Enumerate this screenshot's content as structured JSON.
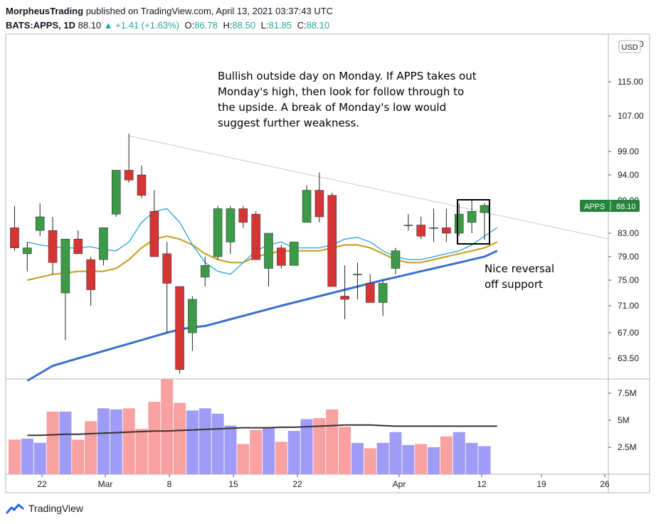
{
  "header": {
    "author": "MorpheusTrading",
    "published": "published on TradingView.com, April 13, 2021 03:37:43 UTC",
    "symbol": "BATS:APPS, 1D",
    "last": "88.10",
    "change_arrow": "▲",
    "change": "+1.41 (+1.63%)",
    "o_label": "O:",
    "o": "86.78",
    "h_label": "H:",
    "h": "88.50",
    "l_label": "L:",
    "l": "81.85",
    "c_label": "C:",
    "c": "88.10"
  },
  "footer": {
    "brand": "TradingView",
    "logo_icon": "tradingview-logo-icon"
  },
  "chart_data": {
    "type": "candlestick",
    "currency": "USD",
    "price_axis_ticks": [
      "115.00",
      "107.00",
      "99.00",
      "94.00",
      "89.00",
      "83.00",
      "79.00",
      "75.00",
      "71.00",
      "67.00",
      "63.50"
    ],
    "price_axis_top_label": "123.00",
    "volume_axis_ticks": [
      "7.5M",
      "5M",
      "2.5M"
    ],
    "x_ticks": [
      {
        "label": "22",
        "date": "2021-02-22"
      },
      {
        "label": "Mar",
        "date": "2021-03-01"
      },
      {
        "label": "8",
        "date": "2021-03-08"
      },
      {
        "label": "15",
        "date": "2021-03-15"
      },
      {
        "label": "22",
        "date": "2021-03-22"
      },
      {
        "label": "Apr",
        "date": "2021-04-01"
      },
      {
        "label": "12",
        "date": "2021-04-12"
      },
      {
        "label": "19",
        "date": "2021-04-19"
      },
      {
        "label": "26",
        "date": "2021-04-26"
      }
    ],
    "last_price_label": {
      "symbol": "APPS",
      "value": "88.10"
    },
    "candles": [
      {
        "date": "2021-02-16",
        "o": 84,
        "h": 88,
        "l": 80,
        "c": 80.5,
        "v": 3.2
      },
      {
        "date": "2021-02-17",
        "o": 79.5,
        "h": 81.5,
        "l": 76.5,
        "c": 80.5,
        "v": 3.3
      },
      {
        "date": "2021-02-18",
        "o": 83.5,
        "h": 88.5,
        "l": 82.5,
        "c": 86,
        "v": 2.9
      },
      {
        "date": "2021-02-19",
        "o": 83.5,
        "h": 86,
        "l": 76,
        "c": 78,
        "v": 5.8
      },
      {
        "date": "2021-02-22",
        "o": 73,
        "h": 82,
        "l": 66,
        "c": 82,
        "v": 5.8
      },
      {
        "date": "2021-02-23",
        "o": 82,
        "h": 83.5,
        "l": 79.5,
        "c": 79.5,
        "v": 3.2
      },
      {
        "date": "2021-02-24",
        "o": 78.5,
        "h": 79,
        "l": 71,
        "c": 73.5,
        "v": 4.9
      },
      {
        "date": "2021-02-25",
        "o": 78.5,
        "h": 84,
        "l": 77.5,
        "c": 84,
        "v": 6.1
      },
      {
        "date": "2021-02-26",
        "o": 86.5,
        "h": 95,
        "l": 86,
        "c": 95,
        "v": 6.0
      },
      {
        "date": "2021-03-01",
        "o": 95,
        "h": 103,
        "l": 92.5,
        "c": 93,
        "v": 6.1
      },
      {
        "date": "2021-03-02",
        "o": 94,
        "h": 96,
        "l": 89.5,
        "c": 90,
        "v": 4.2
      },
      {
        "date": "2021-03-03",
        "o": 87,
        "h": 91,
        "l": 79,
        "c": 79,
        "v": 6.7
      },
      {
        "date": "2021-03-04",
        "o": 79.5,
        "h": 81.5,
        "l": 67,
        "c": 74.5,
        "v": 8.8
      },
      {
        "date": "2021-03-05",
        "o": 74,
        "h": 74,
        "l": 61.5,
        "c": 62,
        "v": 6.6
      },
      {
        "date": "2021-03-08",
        "o": 67,
        "h": 72.5,
        "l": 64.5,
        "c": 72,
        "v": 5.9
      },
      {
        "date": "2021-03-09",
        "o": 75.5,
        "h": 79,
        "l": 74,
        "c": 77.5,
        "v": 6.1
      },
      {
        "date": "2021-03-10",
        "o": 79,
        "h": 88,
        "l": 78.5,
        "c": 87.5,
        "v": 5.6
      },
      {
        "date": "2021-03-11",
        "o": 81.5,
        "h": 88,
        "l": 79.5,
        "c": 87.5,
        "v": 4.5
      },
      {
        "date": "2021-03-12",
        "o": 87.5,
        "h": 88,
        "l": 84,
        "c": 85,
        "v": 2.8
      },
      {
        "date": "2021-03-15",
        "o": 86.5,
        "h": 87,
        "l": 78.5,
        "c": 78.5,
        "v": 4.1
      },
      {
        "date": "2021-03-16",
        "o": 77,
        "h": 83,
        "l": 74,
        "c": 83,
        "v": 4.3
      },
      {
        "date": "2021-03-17",
        "o": 80.5,
        "h": 81,
        "l": 77,
        "c": 77.5,
        "v": 3.0
      },
      {
        "date": "2021-03-18",
        "o": 77.5,
        "h": 81.5,
        "l": 77.5,
        "c": 81.5,
        "v": 4.0
      },
      {
        "date": "2021-03-19",
        "o": 85,
        "h": 92,
        "l": 85,
        "c": 91,
        "v": 5.1
      },
      {
        "date": "2021-03-22",
        "o": 91,
        "h": 94.5,
        "l": 85,
        "c": 86,
        "v": 5.2
      },
      {
        "date": "2021-03-23",
        "o": 90,
        "h": 90.5,
        "l": 74,
        "c": 74,
        "v": 6.0
      },
      {
        "date": "2021-03-24",
        "o": 72.5,
        "h": 77.5,
        "l": 69,
        "c": 72,
        "v": 4.4
      },
      {
        "date": "2021-03-25",
        "o": 76,
        "h": 78,
        "l": 72,
        "c": 76,
        "v": 2.9
      },
      {
        "date": "2021-03-26",
        "o": 74.5,
        "h": 76,
        "l": 71.5,
        "c": 71.5,
        "v": 2.4
      },
      {
        "date": "2021-03-29",
        "o": 71.5,
        "h": 75,
        "l": 69.5,
        "c": 74.5,
        "v": 2.9
      },
      {
        "date": "2021-03-30",
        "o": 77,
        "h": 80.5,
        "l": 76,
        "c": 80,
        "v": 3.9
      },
      {
        "date": "2021-03-31",
        "o": 84.5,
        "h": 86.5,
        "l": 83.5,
        "c": 84.5,
        "v": 2.7
      },
      {
        "date": "2021-04-01",
        "o": 84.5,
        "h": 86,
        "l": 82,
        "c": 82.5,
        "v": 2.8
      },
      {
        "date": "2021-04-05",
        "o": 84,
        "h": 87.5,
        "l": 81.5,
        "c": 84,
        "v": 2.5
      },
      {
        "date": "2021-04-06",
        "o": 84,
        "h": 87.5,
        "l": 81.5,
        "c": 83,
        "v": 3.5
      },
      {
        "date": "2021-04-07",
        "o": 83,
        "h": 88.5,
        "l": 82.5,
        "c": 86.5,
        "v": 3.9
      },
      {
        "date": "2021-04-08",
        "o": 85,
        "h": 89,
        "l": 83,
        "c": 87,
        "v": 2.9
      },
      {
        "date": "2021-04-09",
        "o": 86.78,
        "h": 88.5,
        "l": 81.85,
        "c": 88.1,
        "v": 2.6
      }
    ],
    "ma_short": [
      81.5,
      81,
      80.7,
      80.5,
      80.5,
      80.7,
      80.2,
      80,
      81.5,
      85,
      87,
      87.5,
      85,
      81,
      78,
      76.5,
      76,
      78,
      80,
      81,
      81.5,
      80.5,
      80.5,
      80.5,
      81,
      82,
      82.3,
      81.5,
      80,
      79,
      78.5,
      78.5,
      79,
      79.5,
      80,
      81,
      82.5,
      84
    ],
    "ma_mid": [
      75,
      75.5,
      76,
      76.2,
      76.5,
      76.5,
      76.5,
      77,
      78.5,
      80.5,
      82,
      82.5,
      82,
      81,
      79.5,
      78.5,
      78,
      78,
      79,
      79.5,
      80,
      80,
      80,
      80,
      80.5,
      81,
      81,
      80.5,
      79.5,
      78.5,
      78,
      78,
      78.5,
      79,
      79.5,
      80,
      80.5,
      81.5
    ],
    "ma_long": [
      60.5,
      61.5,
      62.5,
      63,
      63.5,
      64,
      64.5,
      65,
      65.5,
      66,
      66.5,
      67,
      67.5,
      67.8,
      68,
      68.5,
      69,
      69.5,
      70,
      70.5,
      71,
      71.5,
      72,
      72.5,
      73,
      73.5,
      74,
      74.5,
      75,
      75.5,
      76,
      76.5,
      77,
      77.5,
      78,
      78.5,
      79,
      80
    ],
    "volume_ma": [
      3.6,
      3.6,
      3.65,
      3.7,
      3.7,
      3.75,
      3.8,
      3.85,
      3.9,
      3.95,
      4.0,
      4.0,
      4.05,
      4.1,
      4.15,
      4.2,
      4.25,
      4.3,
      4.3,
      4.3,
      4.35,
      4.35,
      4.4,
      4.45,
      4.5,
      4.55,
      4.55,
      4.55,
      4.5,
      4.45,
      4.45,
      4.45,
      4.45,
      4.45,
      4.45,
      4.45,
      4.45,
      4.45
    ],
    "trendline": [
      {
        "date": "2021-03-01",
        "price": 102.5
      },
      {
        "date": "2021-04-26",
        "price": 82.5
      }
    ],
    "annotations": [
      {
        "id": "note-top",
        "lines": [
          "Bullish outside day on Monday.  If APPS takes out",
          "Monday's high, then look for follow through to",
          "the upside.  A break of Monday's low would",
          "suggest further weakness."
        ]
      },
      {
        "id": "note-bottom",
        "lines": [
          "Nice reversal",
          "off support"
        ]
      }
    ]
  }
}
